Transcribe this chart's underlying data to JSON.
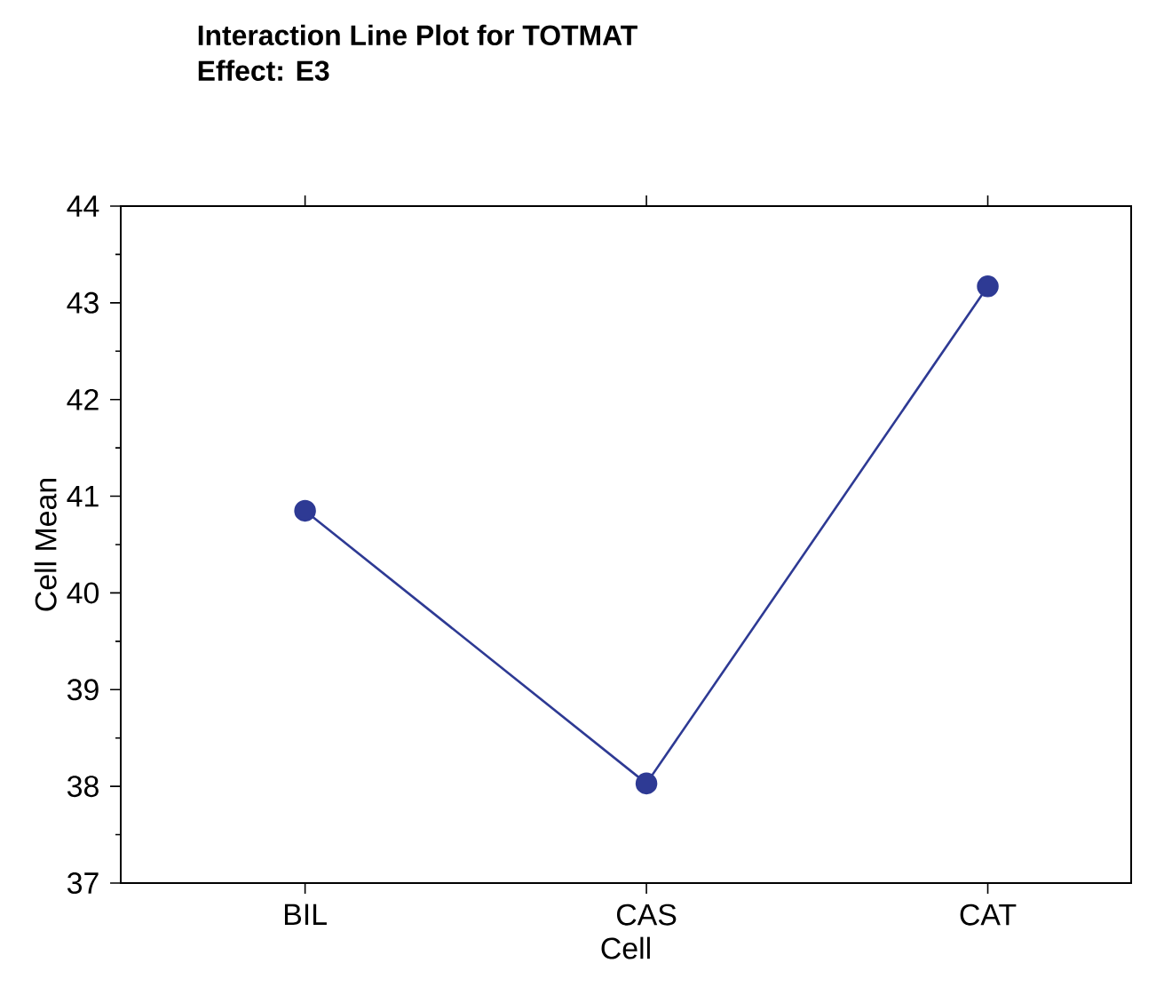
{
  "chart_data": {
    "type": "line",
    "title": "Interaction Line Plot for TOTMAT",
    "subtitle": "Effect: E3",
    "xlabel": "Cell",
    "ylabel": "Cell Mean",
    "categories": [
      "BIL",
      "CAS",
      "CAT"
    ],
    "series": [
      {
        "color": "#2e3a94",
        "values": [
          40.85,
          38.03,
          43.17
        ]
      }
    ],
    "ylim": [
      37,
      44
    ],
    "yticks": [
      37,
      38,
      39,
      40,
      41,
      42,
      43,
      44
    ],
    "grid": false,
    "marker": "circle",
    "line_style": "solid"
  }
}
